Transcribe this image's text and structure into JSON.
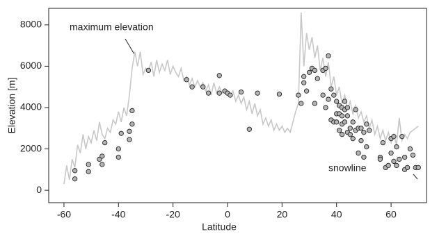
{
  "chart_data": {
    "type": "line",
    "x_label": "Latitude",
    "y_label": "Elevation [m]",
    "xlim": [
      -65.6,
      73
    ],
    "ylim": [
      -600,
      8800
    ],
    "xticks": [
      -60,
      -40,
      -20,
      0,
      20,
      40,
      60
    ],
    "yticks": [
      0,
      2000,
      4000,
      6000,
      8000
    ],
    "series": [
      {
        "name": "maximum elevation",
        "type": "line",
        "color": "#c8c8c8",
        "x": [
          -60,
          -59,
          -58,
          -57,
          -56,
          -55,
          -54,
          -53,
          -52,
          -51,
          -50,
          -49,
          -48,
          -47,
          -46,
          -45,
          -44,
          -43,
          -42,
          -41,
          -40,
          -39,
          -38,
          -37,
          -36,
          -35,
          -34,
          -33,
          -32,
          -31,
          -30,
          -29,
          -28,
          -27,
          -26,
          -25,
          -24,
          -23,
          -22,
          -21,
          -20,
          -19,
          -18,
          -17,
          -16,
          -15,
          -14,
          -13,
          -12,
          -11,
          -10,
          -9,
          -8,
          -7,
          -6,
          -5,
          -4,
          -3,
          -2,
          -1,
          0,
          1,
          2,
          3,
          4,
          5,
          6,
          7,
          8,
          9,
          10,
          11,
          12,
          13,
          14,
          15,
          16,
          17,
          18,
          19,
          20,
          21,
          22,
          23,
          24,
          25,
          26,
          27,
          28,
          29,
          30,
          31,
          32,
          33,
          34,
          35,
          36,
          37,
          38,
          39,
          40,
          41,
          42,
          43,
          44,
          45,
          46,
          47,
          48,
          49,
          50,
          51,
          52,
          53,
          54,
          55,
          56,
          57,
          58,
          59,
          60,
          61,
          62,
          63,
          64,
          65,
          66,
          67,
          68,
          69,
          70
        ],
        "values": [
          300,
          1200,
          500,
          1500,
          1100,
          2200,
          1800,
          2700,
          2000,
          2600,
          2300,
          2900,
          2400,
          3300,
          2700,
          2500,
          3000,
          2800,
          3400,
          3200,
          3800,
          3300,
          4000,
          3600,
          4600,
          5900,
          6700,
          6000,
          6700,
          5600,
          5900,
          5800,
          6200,
          5500,
          6300,
          5700,
          6100,
          5800,
          6300,
          5600,
          6000,
          5700,
          5500,
          5900,
          5300,
          5500,
          5100,
          5400,
          5000,
          5300,
          5000,
          5200,
          4800,
          5100,
          4600,
          5200,
          4700,
          5000,
          4700,
          4900,
          4800,
          4600,
          4800,
          4300,
          4600,
          4200,
          4500,
          3900,
          4300,
          3700,
          4200,
          3600,
          3900,
          3200,
          3500,
          3100,
          3400,
          2900,
          3200,
          2900,
          3100,
          2800,
          3000,
          2800,
          3300,
          3800,
          4200,
          8600,
          6000,
          7600,
          6800,
          7400,
          6400,
          7000,
          5800,
          6400,
          5500,
          6200,
          5000,
          5500,
          4600,
          5000,
          4200,
          4600,
          3900,
          4300,
          3700,
          4100,
          3500,
          3800,
          3300,
          3600,
          3000,
          3400,
          2700,
          3100,
          2500,
          2900,
          2400,
          2800,
          2300,
          2700,
          2200,
          3500,
          2400,
          2700,
          2500,
          2800,
          2900,
          3000,
          3100
        ]
      },
      {
        "name": "snowline",
        "type": "scatter",
        "color": "#b3b3b3",
        "x": [
          -56,
          -56,
          -51,
          -51,
          -47,
          -46,
          -46,
          -45,
          -40,
          -40,
          -39,
          -36,
          -36,
          -35,
          -35,
          -29,
          -15,
          -13,
          -9,
          -7,
          -3,
          -3,
          -1,
          0,
          1,
          5,
          8,
          11,
          19,
          26,
          27,
          28,
          28,
          29,
          30,
          31,
          32,
          32,
          33,
          35,
          35,
          36,
          36,
          37,
          37,
          38,
          38,
          39,
          39,
          40,
          40,
          40,
          41,
          41,
          41,
          42,
          42,
          42,
          42,
          43,
          43,
          43,
          44,
          44,
          44,
          45,
          45,
          46,
          46,
          47,
          47,
          48,
          48,
          49,
          49,
          50,
          50,
          51,
          51,
          52,
          56,
          56,
          57,
          58,
          59,
          60,
          60,
          61,
          61,
          62,
          62,
          63,
          64,
          65,
          65,
          66,
          67,
          68,
          69,
          70
        ],
        "values": [
          550,
          950,
          900,
          1250,
          1500,
          1250,
          1650,
          2300,
          1600,
          2000,
          2750,
          2450,
          2850,
          3200,
          3850,
          5800,
          5350,
          5000,
          5000,
          4700,
          4700,
          5550,
          4800,
          4700,
          4600,
          4750,
          2950,
          4700,
          4650,
          4600,
          4200,
          5500,
          5200,
          4800,
          5700,
          5900,
          4200,
          5800,
          5400,
          5800,
          4600,
          4000,
          5900,
          6500,
          4400,
          4900,
          3400,
          3300,
          4600,
          4300,
          3700,
          3300,
          4100,
          3700,
          2900,
          4000,
          3600,
          3200,
          2700,
          4300,
          3900,
          3300,
          2800,
          3600,
          4000,
          3000,
          2700,
          2500,
          3300,
          3900,
          2900,
          3000,
          1800,
          3000,
          2400,
          1600,
          2800,
          3200,
          2100,
          2900,
          1600,
          1500,
          2300,
          1100,
          1200,
          2500,
          1800,
          2600,
          1400,
          2100,
          1200,
          1500,
          2600,
          1600,
          1000,
          1100,
          2000,
          1700,
          1100,
          1100
        ]
      }
    ]
  }
}
